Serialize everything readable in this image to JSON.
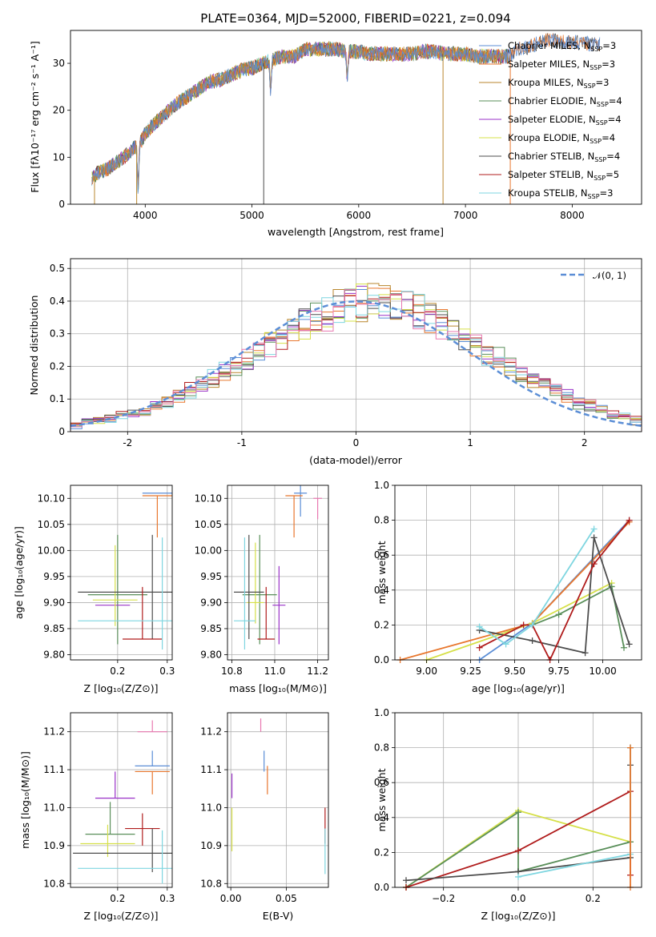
{
  "figure_title": "PLATE=0364, MJD=52000, FIBERID=0221, z=0.094",
  "colors": {
    "c1": "#5b8ed6",
    "c2": "#e8772e",
    "c3": "#b8862d",
    "c4": "#5a8f5a",
    "c5": "#9a32c8",
    "c6": "#d6e04a",
    "c7": "#4d4d4d",
    "c8": "#b01c1c",
    "c9": "#7fd6e0",
    "pink": "#e878b0"
  },
  "chart_data": [
    {
      "id": "spectrum",
      "type": "line",
      "xlabel": "wavelength [Angstrom, rest frame]",
      "ylabel": "Flux [fλ10⁻¹⁷ erg cm⁻² s⁻¹ A⁻¹]",
      "xlim": [
        3300,
        8650
      ],
      "ylim": [
        0,
        37
      ],
      "xticks": [
        4000,
        5000,
        6000,
        7000,
        8000
      ],
      "yticks": [
        0,
        10,
        20,
        30
      ],
      "grid": false,
      "legend_position": "upper-right",
      "continuum": {
        "x": [
          3500,
          3550,
          3650,
          3700,
          3800,
          3900,
          3950,
          4000,
          4100,
          4200,
          4300,
          4400,
          4500,
          4600,
          4700,
          4800,
          4900,
          5000,
          5100,
          5200,
          5300,
          5400,
          5500,
          5600,
          5700,
          5800,
          5900,
          6000,
          6100,
          6200,
          6300,
          6400,
          6500,
          6600,
          6700,
          6800,
          6900,
          7000,
          7100,
          7200,
          7300,
          7400
        ],
        "y": [
          5.5,
          6.5,
          7.5,
          8.5,
          10,
          12,
          13,
          15,
          17.5,
          19.5,
          21.5,
          23,
          24.5,
          26,
          26.5,
          27.5,
          28.5,
          29,
          30,
          30.8,
          31.5,
          31.5,
          33,
          33,
          33,
          33,
          32.5,
          32.5,
          32,
          32,
          32,
          32,
          32,
          32.5,
          32.5,
          32,
          32,
          32,
          31.5,
          31.5,
          31.5,
          31.5
        ]
      },
      "dips": [
        {
          "x": 3934,
          "y": 3.5
        },
        {
          "x": 5175,
          "y": 24
        },
        {
          "x": 5893,
          "y": 27
        }
      ],
      "tail": {
        "x": [
          7400,
          7500,
          7600,
          7700,
          7800,
          7900,
          8000,
          8100,
          8200,
          8260
        ],
        "y": [
          32,
          33,
          33.5,
          34.5,
          35,
          34.5,
          34.5,
          34.5,
          34,
          34
        ]
      },
      "vertical_drops": [
        {
          "x": 3525,
          "series": "c3"
        },
        {
          "x": 3920,
          "series": "c3"
        },
        {
          "x": 5110,
          "series": "c7"
        },
        {
          "x": 6790,
          "series": "c3"
        },
        {
          "x": 7420,
          "series": "c2"
        }
      ],
      "series": [
        {
          "name": "Chabrier MILES, N_SSP=3",
          "color_key": "c1",
          "extends_to": 8260
        },
        {
          "name": "Salpeter MILES, N_SSP=3",
          "color_key": "c2",
          "extends_to": 8260
        },
        {
          "name": "Kroupa MILES, N_SSP=3",
          "color_key": "c3",
          "extends_to": 7400
        },
        {
          "name": "Chabrier ELODIE, N_SSP=4",
          "color_key": "c4",
          "extends_to": 7400
        },
        {
          "name": "Salpeter ELODIE, N_SSP=4",
          "color_key": "c5",
          "extends_to": 7400
        },
        {
          "name": "Kroupa ELODIE, N_SSP=4",
          "color_key": "c6",
          "extends_to": 7400
        },
        {
          "name": "Chabrier STELIB, N_SSP=4",
          "color_key": "c7",
          "extends_to": 8260
        },
        {
          "name": "Salpeter STELIB, N_SSP=5",
          "color_key": "c8",
          "extends_to": 7400
        },
        {
          "name": "Kroupa STELIB, N_SSP=3",
          "color_key": "c9",
          "extends_to": 7400
        }
      ]
    },
    {
      "id": "residuals",
      "type": "histogram",
      "xlabel": "(data-model)/error",
      "ylabel": "Normed distribution",
      "xlim": [
        -2.5,
        2.5
      ],
      "ylim": [
        0,
        0.53
      ],
      "xticks": [
        -2,
        -1,
        0,
        1,
        2
      ],
      "yticks": [
        0.0,
        0.1,
        0.2,
        0.3,
        0.4,
        0.5
      ],
      "grid": true,
      "bin_edges_start": -2.5,
      "bin_width": 0.1,
      "n_bins": 50,
      "envelope": [
        0.02,
        0.03,
        0.035,
        0.04,
        0.05,
        0.055,
        0.065,
        0.08,
        0.09,
        0.11,
        0.125,
        0.145,
        0.16,
        0.18,
        0.2,
        0.22,
        0.245,
        0.265,
        0.29,
        0.31,
        0.33,
        0.35,
        0.365,
        0.38,
        0.39,
        0.4,
        0.4,
        0.395,
        0.39,
        0.38,
        0.365,
        0.35,
        0.33,
        0.31,
        0.29,
        0.265,
        0.245,
        0.22,
        0.2,
        0.18,
        0.16,
        0.145,
        0.125,
        0.11,
        0.09,
        0.08,
        0.065,
        0.055,
        0.045,
        0.035
      ],
      "series_colors": [
        "c1",
        "c2",
        "c3",
        "c4",
        "c5",
        "c6",
        "c7",
        "c8",
        "c9",
        "pink"
      ],
      "reference_curve": {
        "name": "𝒩(0, 1)",
        "style": "dashed",
        "color_key": "c1",
        "mean": 0,
        "sigma": 1
      },
      "legend_position": "upper-right"
    },
    {
      "id": "age_vs_Z",
      "type": "errorbar",
      "xlabel": "Z [log₁₀(Z/Z⊙)]",
      "ylabel": "age  [log₁₀(age/yr)]",
      "xlim": [
        0.105,
        0.31
      ],
      "ylim": [
        9.79,
        10.125
      ],
      "xticks": [
        0.2,
        0.3
      ],
      "yticks": [
        9.8,
        9.85,
        9.9,
        9.95,
        10.0,
        10.05,
        10.1
      ],
      "ytick_labels": [
        "9.80",
        "9.85",
        "9.90",
        "9.95",
        "10.00",
        "10.05",
        "10.10"
      ],
      "xtick_labels": [
        "0.2",
        "0.3"
      ],
      "grid": true,
      "points": [
        {
          "x": 0.28,
          "xerr": 0.03,
          "y": 10.11,
          "yerr_lo": 0.0,
          "yerr_hi": 0.0,
          "color_key": "c1"
        },
        {
          "x": 0.28,
          "xerr": 0.03,
          "y": 10.105,
          "yerr_lo": 0.08,
          "yerr_hi": 0.0,
          "color_key": "c2"
        },
        {
          "x": 0.2,
          "xerr": 0.06,
          "y": 9.915,
          "yerr_lo": 0.095,
          "yerr_hi": 0.115,
          "color_key": "c4"
        },
        {
          "x": 0.19,
          "xerr": 0.035,
          "y": 9.895,
          "yerr_lo": 0.0,
          "yerr_hi": 0.0,
          "color_key": "c5"
        },
        {
          "x": 0.195,
          "xerr": 0.045,
          "y": 9.905,
          "yerr_lo": 0.05,
          "yerr_hi": 0.105,
          "color_key": "c6"
        },
        {
          "x": 0.27,
          "xerr": 0.15,
          "y": 9.92,
          "yerr_lo": 0.09,
          "yerr_hi": 0.11,
          "color_key": "c7"
        },
        {
          "x": 0.25,
          "xerr": 0.04,
          "y": 9.83,
          "yerr_lo": 0.0,
          "yerr_hi": 0.1,
          "color_key": "c8"
        },
        {
          "x": 0.29,
          "xerr": 0.17,
          "y": 9.865,
          "yerr_lo": 0.055,
          "yerr_hi": 0.16,
          "color_key": "c9"
        }
      ]
    },
    {
      "id": "age_vs_mass",
      "type": "errorbar",
      "xlabel": "mass [log₁₀(M/M⊙)]",
      "ylabel": "",
      "xlim": [
        10.78,
        11.25
      ],
      "ylim": [
        9.79,
        10.125
      ],
      "xticks": [
        10.8,
        11.0,
        11.2
      ],
      "xtick_labels": [
        "10.8",
        "11.0",
        "11.2"
      ],
      "yticks": [
        9.8,
        9.85,
        9.9,
        9.95,
        10.0,
        10.05,
        10.1
      ],
      "ytick_labels": [
        "9.80",
        "9.85",
        "9.90",
        "9.95",
        "10.00",
        "10.05",
        "10.10"
      ],
      "grid": true,
      "points": [
        {
          "x": 11.12,
          "xerr": 0.03,
          "y": 10.11,
          "yerr_lo": 0.045,
          "yerr_hi": 0.015,
          "color_key": "c1"
        },
        {
          "x": 11.09,
          "xerr": 0.04,
          "y": 10.105,
          "yerr_lo": 0.08,
          "yerr_hi": 0.0,
          "color_key": "c2"
        },
        {
          "x": 11.2,
          "xerr": 0.02,
          "y": 10.1,
          "yerr_lo": 0.04,
          "yerr_hi": 0.0,
          "color_key": "pink"
        },
        {
          "x": 10.93,
          "xerr": 0.08,
          "y": 9.915,
          "yerr_lo": 0.095,
          "yerr_hi": 0.115,
          "color_key": "c4"
        },
        {
          "x": 11.02,
          "xerr": 0.03,
          "y": 9.895,
          "yerr_lo": 0.075,
          "yerr_hi": 0.075,
          "color_key": "c5"
        },
        {
          "x": 10.91,
          "xerr": 0.04,
          "y": 9.9,
          "yerr_lo": 0.04,
          "yerr_hi": 0.115,
          "color_key": "c6"
        },
        {
          "x": 10.88,
          "xerr": 0.07,
          "y": 9.92,
          "yerr_lo": 0.09,
          "yerr_hi": 0.11,
          "color_key": "c7"
        },
        {
          "x": 10.96,
          "xerr": 0.04,
          "y": 9.83,
          "yerr_lo": 0.0,
          "yerr_hi": 0.1,
          "color_key": "c8"
        },
        {
          "x": 10.86,
          "xerr": 0.05,
          "y": 9.865,
          "yerr_lo": 0.055,
          "yerr_hi": 0.16,
          "color_key": "c9"
        }
      ]
    },
    {
      "id": "weight_vs_age",
      "type": "line",
      "xlabel": "age  [log₁₀(age/yr)]",
      "ylabel": "mass weight",
      "xlim": [
        8.82,
        10.22
      ],
      "ylim": [
        0,
        1.0
      ],
      "xticks": [
        9.0,
        9.25,
        9.5,
        9.75,
        10.0
      ],
      "xtick_labels": [
        "9.00",
        "9.25",
        "9.50",
        "9.75",
        "10.00"
      ],
      "yticks": [
        0.0,
        0.2,
        0.4,
        0.6,
        0.8,
        1.0
      ],
      "ytick_labels": [
        "0.0",
        "0.2",
        "0.4",
        "0.6",
        "0.8",
        "1.0"
      ],
      "grid": true,
      "series": [
        {
          "color_key": "c1",
          "x": [
            9.3,
            9.6,
            10.15
          ],
          "y": [
            0.0,
            0.21,
            0.8
          ]
        },
        {
          "color_key": "c2",
          "x": [
            8.85,
            9.6,
            10.15
          ],
          "y": [
            0.0,
            0.21,
            0.79
          ]
        },
        {
          "color_key": "c6",
          "x": [
            9.0,
            9.6,
            10.05
          ],
          "y": [
            0.0,
            0.21,
            0.44
          ]
        },
        {
          "color_key": "c4",
          "x": [
            9.6,
            9.75,
            10.05,
            10.12
          ],
          "y": [
            0.2,
            0.26,
            0.42,
            0.07
          ]
        },
        {
          "color_key": "c7",
          "x": [
            9.3,
            9.6,
            9.9,
            9.95,
            10.15
          ],
          "y": [
            0.17,
            0.11,
            0.04,
            0.7,
            0.09
          ]
        },
        {
          "color_key": "c8",
          "x": [
            9.3,
            9.55,
            9.6,
            9.7,
            9.95,
            10.15
          ],
          "y": [
            0.07,
            0.2,
            0.2,
            0.0,
            0.55,
            0.8
          ]
        },
        {
          "color_key": "c9",
          "x": [
            9.3,
            9.45,
            9.6,
            9.95
          ],
          "y": [
            0.19,
            0.09,
            0.2,
            0.75
          ]
        }
      ]
    },
    {
      "id": "mass_vs_Z",
      "type": "errorbar",
      "xlabel": "Z [log₁₀(Z/Z⊙)]",
      "ylabel": "mass [log₁₀(M/M⊙)]",
      "xlim": [
        0.105,
        0.31
      ],
      "ylim": [
        10.79,
        11.25
      ],
      "xticks": [
        0.2,
        0.3
      ],
      "xtick_labels": [
        "0.2",
        "0.3"
      ],
      "yticks": [
        10.8,
        10.9,
        11.0,
        11.1,
        11.2
      ],
      "ytick_labels": [
        "10.8",
        "10.9",
        "11.0",
        "11.1",
        "11.2"
      ],
      "grid": true,
      "points": [
        {
          "x": 0.27,
          "xerr": 0.03,
          "y": 11.2,
          "yerr_lo": 0.0,
          "yerr_hi": 0.03,
          "color_key": "pink"
        },
        {
          "x": 0.27,
          "xerr": 0.035,
          "y": 11.11,
          "yerr_lo": 0.0,
          "yerr_hi": 0.04,
          "color_key": "c1"
        },
        {
          "x": 0.27,
          "xerr": 0.035,
          "y": 11.095,
          "yerr_lo": 0.06,
          "yerr_hi": 0.0,
          "color_key": "c2"
        },
        {
          "x": 0.195,
          "xerr": 0.04,
          "y": 11.025,
          "yerr_lo": 0.0,
          "yerr_hi": 0.07,
          "color_key": "c5"
        },
        {
          "x": 0.185,
          "xerr": 0.05,
          "y": 10.93,
          "yerr_lo": 0.0,
          "yerr_hi": 0.085,
          "color_key": "c4"
        },
        {
          "x": 0.18,
          "xerr": 0.055,
          "y": 10.905,
          "yerr_lo": 0.035,
          "yerr_hi": 0.05,
          "color_key": "c6"
        },
        {
          "x": 0.25,
          "xerr": 0.035,
          "y": 10.945,
          "yerr_lo": 0.045,
          "yerr_hi": 0.04,
          "color_key": "c8"
        },
        {
          "x": 0.27,
          "xerr": 0.16,
          "y": 10.88,
          "yerr_lo": 0.05,
          "yerr_hi": 0.065,
          "color_key": "c7"
        },
        {
          "x": 0.29,
          "xerr": 0.17,
          "y": 10.84,
          "yerr_lo": 0.04,
          "yerr_hi": 0.1,
          "color_key": "c9"
        }
      ]
    },
    {
      "id": "mass_vs_EBV",
      "type": "errorbar",
      "xlabel": "E(B-V)",
      "ylabel": "",
      "xlim": [
        -0.003,
        0.088
      ],
      "ylim": [
        10.79,
        11.25
      ],
      "xticks": [
        0.0,
        0.05
      ],
      "xtick_labels": [
        "0.00",
        "0.05"
      ],
      "yticks": [
        10.8,
        10.9,
        11.0,
        11.1,
        11.2
      ],
      "ytick_labels": [
        "10.8",
        "10.9",
        "11.0",
        "11.1",
        "11.2"
      ],
      "grid": true,
      "points": [
        {
          "x": 0.027,
          "y": 11.2,
          "yerr_lo": 0.0,
          "yerr_hi": 0.035,
          "color_key": "pink"
        },
        {
          "x": 0.03,
          "y": 11.11,
          "yerr_lo": 0.015,
          "yerr_hi": 0.04,
          "color_key": "c1"
        },
        {
          "x": 0.033,
          "y": 11.095,
          "yerr_lo": 0.06,
          "yerr_hi": 0.015,
          "color_key": "c2"
        },
        {
          "x": 0.001,
          "y": 11.025,
          "yerr_lo": 0.0,
          "yerr_hi": 0.065,
          "color_key": "c5"
        },
        {
          "x": 0.001,
          "y": 10.93,
          "yerr_lo": 0.045,
          "yerr_hi": 0.07,
          "color_key": "c6"
        },
        {
          "x": 0.085,
          "y": 10.945,
          "yerr_lo": 0.04,
          "yerr_hi": 0.055,
          "color_key": "c8"
        },
        {
          "x": 0.085,
          "y": 10.88,
          "yerr_lo": 0.055,
          "yerr_hi": 0.065,
          "color_key": "c9"
        }
      ]
    },
    {
      "id": "weight_vs_Z",
      "type": "line",
      "xlabel": "Z [log₁₀(Z/Z⊙)]",
      "ylabel": "mass weight",
      "xlim": [
        -0.33,
        0.33
      ],
      "ylim": [
        0,
        1.0
      ],
      "xticks": [
        -0.2,
        0.0,
        0.2
      ],
      "xtick_labels": [
        "−0.2",
        "0.0",
        "0.2"
      ],
      "yticks": [
        0.0,
        0.2,
        0.4,
        0.6,
        0.8,
        1.0
      ],
      "ytick_labels": [
        "0.0",
        "0.2",
        "0.4",
        "0.6",
        "0.8",
        "1.0"
      ],
      "grid": true,
      "series": [
        {
          "color_key": "c6",
          "x": [
            -0.3,
            0.0,
            0.3
          ],
          "y": [
            0.0,
            0.44,
            0.26
          ]
        },
        {
          "color_key": "c4",
          "x": [
            -0.3,
            0.0,
            0.0,
            0.3,
            0.3
          ],
          "y": [
            0.0,
            0.43,
            0.09,
            0.26,
            0.8
          ]
        },
        {
          "color_key": "c8",
          "x": [
            -0.3,
            0.0,
            0.3,
            0.3
          ],
          "y": [
            0.0,
            0.21,
            0.55,
            0.07
          ]
        },
        {
          "color_key": "c7",
          "x": [
            -0.3,
            0.0,
            0.3,
            0.3
          ],
          "y": [
            0.04,
            0.09,
            0.17,
            0.7
          ]
        },
        {
          "color_key": "c9",
          "x": [
            0.0,
            0.3,
            0.3
          ],
          "y": [
            0.06,
            0.19,
            0.8
          ]
        },
        {
          "color_key": "c2",
          "x": [
            0.3,
            0.3
          ],
          "y": [
            0.0,
            0.8
          ]
        }
      ]
    }
  ]
}
